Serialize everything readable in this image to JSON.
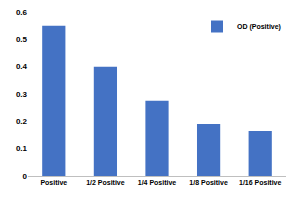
{
  "chart_data": {
    "type": "bar",
    "categories": [
      "Positive",
      "1/2 Positive",
      "1/4 Positive",
      "1/8 Positive",
      "1/16 Positive"
    ],
    "series": [
      {
        "name": "OD (Positive)",
        "color": "#4472c4",
        "values": [
          0.55,
          0.4,
          0.275,
          0.19,
          0.165
        ]
      }
    ],
    "ylim": [
      0,
      0.6
    ],
    "yticks": [
      0,
      0.1,
      0.2,
      0.3,
      0.4,
      0.5,
      0.6
    ],
    "grid": false,
    "legend": "top right"
  }
}
